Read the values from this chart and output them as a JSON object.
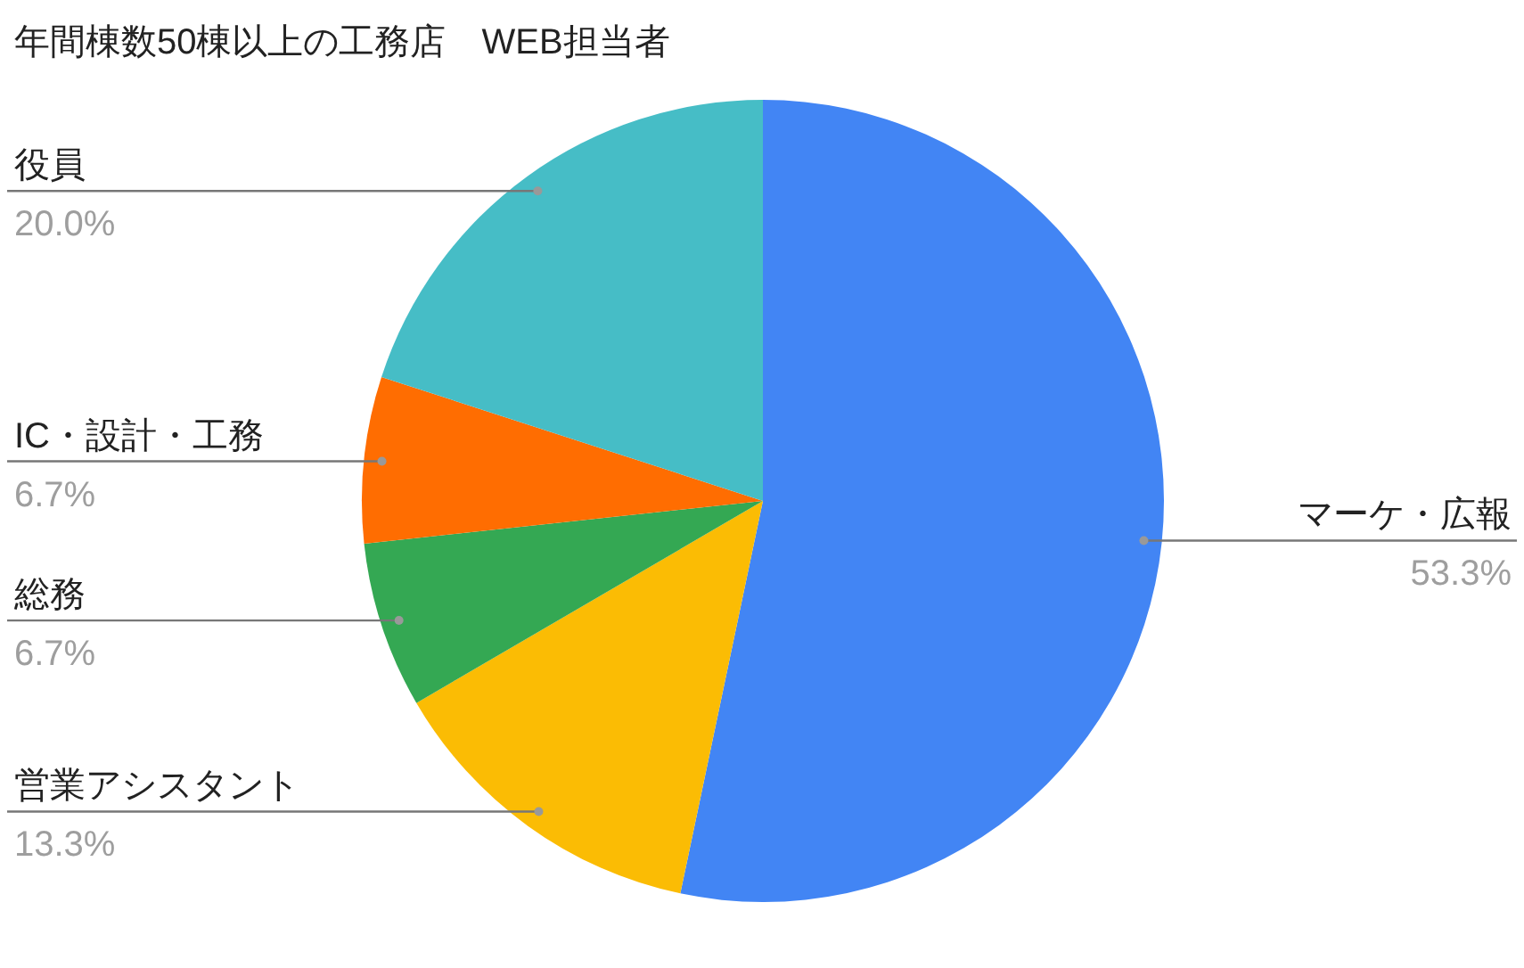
{
  "chart_data": {
    "type": "pie",
    "title": "年間棟数50棟以上の工務店　WEB担当者",
    "categories": [
      "マーケ・広報",
      "営業アシスタント",
      "総務",
      "IC・設計・工務",
      "役員"
    ],
    "values": [
      53.3,
      13.3,
      6.7,
      6.7,
      20.0
    ],
    "value_labels": [
      "53.3%",
      "13.3%",
      "6.7%",
      "6.7%",
      "20.0%"
    ],
    "colors": [
      "#4285f4",
      "#fbbc04",
      "#34a853",
      "#ff6d01",
      "#46bdc6"
    ],
    "legend": false
  }
}
